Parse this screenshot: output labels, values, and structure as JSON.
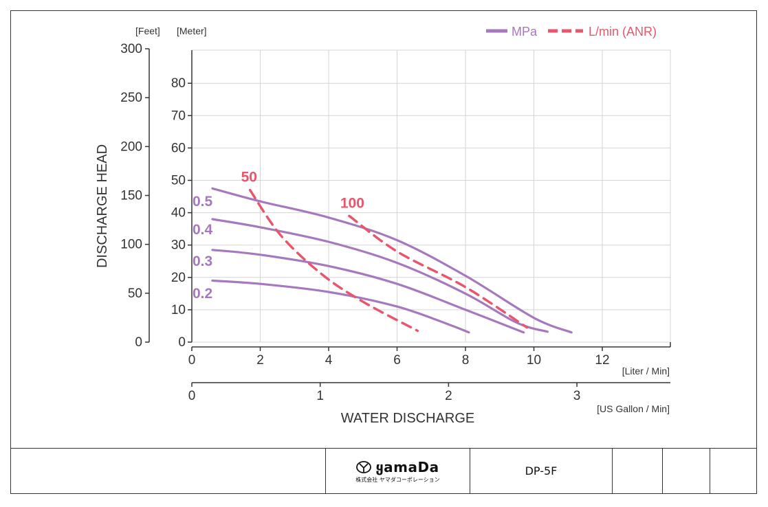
{
  "chart_data": {
    "type": "line",
    "xlabel": "WATER DISCHARGE",
    "ylabel": "DISCHARGE HEAD",
    "left_unit_label": "[Feet]",
    "right_unit_label": "[Meter]",
    "x_primary_unit": "[Liter / Min]",
    "x_secondary_unit": "[US Gallon / Min]",
    "xlim": [
      0,
      14
    ],
    "ylim_meter": [
      0,
      90
    ],
    "ylim_feet": [
      0,
      300
    ],
    "x_ticks": [
      "0",
      "2",
      "4",
      "6",
      "8",
      "10",
      "12"
    ],
    "x_secondary_ticks": [
      "0",
      "1",
      "2",
      "3"
    ],
    "y_meter_ticks": [
      "0",
      "10",
      "20",
      "30",
      "40",
      "50",
      "60",
      "70",
      "80"
    ],
    "y_feet_ticks": [
      "0",
      "50",
      "100",
      "150",
      "200",
      "250",
      "300"
    ],
    "grid": true,
    "legend_position": "top-right",
    "legend": [
      {
        "label": "MPa",
        "style": "solid",
        "color": "#a678bd"
      },
      {
        "label": "L/min (ANR)",
        "style": "dashed",
        "color": "#e8566d"
      }
    ],
    "series": [
      {
        "name": "0.5",
        "kind": "pressure",
        "color": "#a678bd",
        "points": [
          [
            0.6,
            47.5
          ],
          [
            2,
            43.5
          ],
          [
            4,
            38.5
          ],
          [
            6,
            31.5
          ],
          [
            8,
            20.5
          ],
          [
            10,
            7.5
          ],
          [
            11.1,
            3
          ]
        ]
      },
      {
        "name": "0.4",
        "kind": "pressure",
        "color": "#a678bd",
        "points": [
          [
            0.6,
            38
          ],
          [
            2,
            35.5
          ],
          [
            4,
            31
          ],
          [
            6,
            24.5
          ],
          [
            8,
            15
          ],
          [
            9.5,
            6
          ],
          [
            10.4,
            3.2
          ]
        ]
      },
      {
        "name": "0.3",
        "kind": "pressure",
        "color": "#a678bd",
        "points": [
          [
            0.6,
            28.5
          ],
          [
            2,
            27
          ],
          [
            4,
            23.5
          ],
          [
            6,
            18
          ],
          [
            8,
            10
          ],
          [
            9.7,
            3
          ]
        ]
      },
      {
        "name": "0.2",
        "kind": "pressure",
        "color": "#a678bd",
        "points": [
          [
            0.6,
            19
          ],
          [
            2,
            18
          ],
          [
            4,
            15.5
          ],
          [
            6,
            11
          ],
          [
            7.5,
            5.5
          ],
          [
            8.1,
            3
          ]
        ]
      },
      {
        "name": "50",
        "kind": "air",
        "color": "#e8566d",
        "points": [
          [
            1.7,
            47
          ],
          [
            2.6,
            33
          ],
          [
            3.8,
            21
          ],
          [
            5,
            12.5
          ],
          [
            6.6,
            3.5
          ]
        ]
      },
      {
        "name": "100",
        "kind": "air",
        "color": "#e8566d",
        "points": [
          [
            4.6,
            39
          ],
          [
            6,
            28
          ],
          [
            8,
            17
          ],
          [
            9.8,
            4.5
          ]
        ]
      }
    ]
  },
  "footer": {
    "logo_name": "yamada",
    "logo_text": "ყamaDa",
    "logo_subtitle": "株式会社 ヤマダコーポレーション",
    "model": "DP-5F"
  }
}
